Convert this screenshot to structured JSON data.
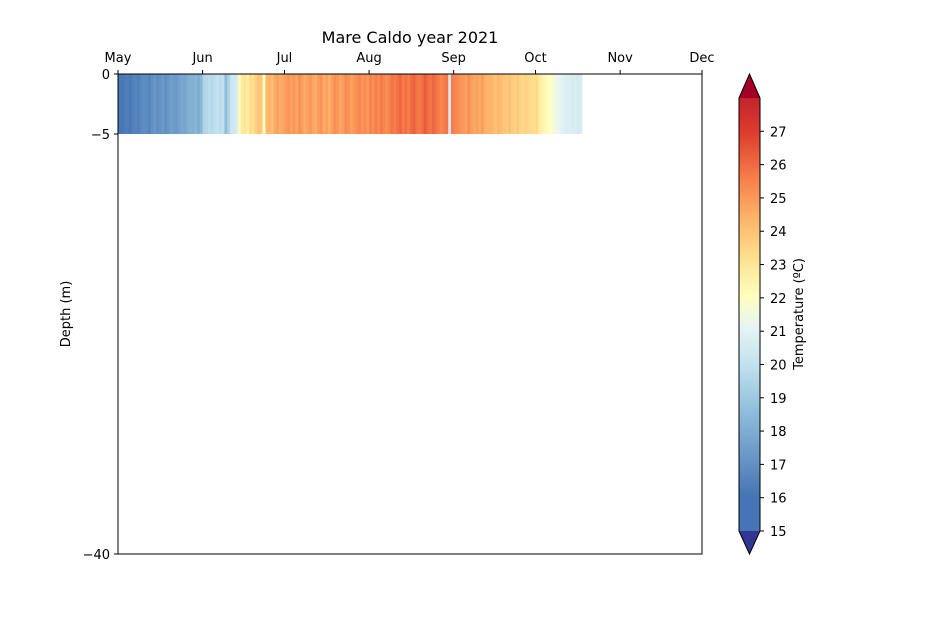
{
  "chart_data": {
    "type": "heatmap",
    "title": "Mare Caldo year 2021",
    "xlabel": "",
    "ylabel": "Depth (m)",
    "colorbar_label": "Temperature (ºC)",
    "colormap": "RdYlBu_r",
    "colorbar_extend": "both",
    "x_ticks": [
      "May",
      "Jun",
      "Jul",
      "Aug",
      "Sep",
      "Oct",
      "Nov",
      "Dec"
    ],
    "x_tick_dates": [
      "2021-05-01",
      "2021-06-01",
      "2021-07-01",
      "2021-08-01",
      "2021-09-01",
      "2021-10-01",
      "2021-11-01",
      "2021-12-01"
    ],
    "xlim": [
      "2021-05-01",
      "2021-12-01"
    ],
    "y_ticks": [
      0,
      -5,
      -40
    ],
    "y_tick_labels": [
      "0",
      "−5",
      "−40"
    ],
    "ylim": [
      -40,
      0
    ],
    "clim": [
      15,
      28
    ],
    "colorbar_ticks": [
      15,
      16,
      17,
      18,
      19,
      20,
      21,
      22,
      23,
      24,
      25,
      26,
      27
    ],
    "depth_band": [
      0,
      -5
    ],
    "start_date": "2021-05-01",
    "daily_temperature": [
      16.2,
      16.1,
      16.3,
      16.4,
      16.2,
      16.5,
      16.6,
      16.4,
      16.7,
      16.9,
      16.8,
      16.6,
      17.0,
      17.2,
      16.9,
      17.1,
      17.3,
      17.0,
      17.2,
      17.5,
      17.4,
      17.3,
      17.6,
      17.8,
      17.7,
      18.0,
      18.2,
      18.1,
      18.3,
      18.0,
      18.4,
      19.5,
      19.6,
      19.8,
      19.7,
      19.9,
      20.1,
      19.8,
      20.0,
      18.6,
      19.4,
      20.3,
      20.4,
      20.6,
      22.2,
      22.8,
      23.0,
      22.6,
      23.3,
      23.1,
      23.6,
      24.0,
      23.8,
      22.0,
      24.2,
      24.4,
      24.1,
      24.6,
      24.8,
      24.5,
      24.7,
      24.9,
      25.1,
      24.8,
      25.0,
      24.7,
      25.2,
      24.9,
      24.6,
      24.8,
      25.0,
      24.7,
      24.5,
      24.9,
      25.1,
      24.6,
      24.8,
      24.4,
      24.9,
      25.2,
      25.0,
      24.7,
      24.9,
      25.3,
      25.1,
      24.8,
      25.0,
      25.2,
      25.4,
      25.1,
      25.3,
      25.0,
      25.5,
      25.2,
      25.6,
      25.3,
      25.7,
      25.4,
      25.2,
      25.5,
      25.8,
      25.6,
      25.9,
      26.1,
      25.7,
      25.9,
      25.6,
      26.0,
      26.2,
      25.8,
      25.7,
      25.9,
      26.3,
      26.0,
      25.8,
      26.1,
      25.9,
      25.6,
      25.4,
      25.6,
      25.8,
      20.5,
      25.6,
      25.4,
      25.3,
      25.1,
      25.0,
      24.8,
      25.2,
      24.9,
      24.7,
      24.8,
      24.6,
      24.9,
      24.5,
      24.3,
      24.4,
      24.2,
      24.0,
      24.3,
      24.1,
      23.9,
      23.8,
      24.0,
      23.7,
      23.6,
      23.8,
      23.5,
      23.4,
      23.6,
      23.4,
      23.3,
      23.2,
      23.4,
      22.8,
      22.5,
      22.3,
      22.1,
      21.9,
      21.6,
      21.4,
      21.2,
      21.0,
      20.9,
      20.7,
      20.8,
      20.6,
      20.7,
      20.5,
      20.6
    ]
  }
}
